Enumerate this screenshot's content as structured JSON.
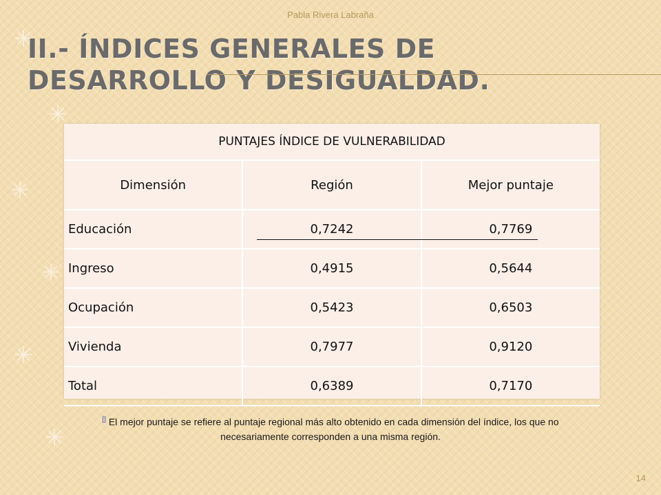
{
  "header": {
    "author": "Pabla Rivera Labraña"
  },
  "slide": {
    "title": "II.- ÍNDICES GENERALES DE DESARROLLO Y DESIGUALDAD.",
    "page_number": "14"
  },
  "table": {
    "title": "PUNTAJES ÍNDICE DE VULNERABILIDAD",
    "columns": [
      "Dimensión",
      "Región",
      "Mejor puntaje"
    ],
    "rows": [
      [
        "Educación",
        "0,7242",
        "0,7769"
      ],
      [
        "Ingreso",
        "0,4915",
        "0,5644"
      ],
      [
        "Ocupación",
        "0,5423",
        "0,6503"
      ],
      [
        "Vivienda",
        "0,7977",
        "0,9120"
      ],
      [
        "Total",
        "0,6389",
        "0,7170"
      ]
    ]
  },
  "footnote": {
    "marker": "[]",
    "line1": "El mejor puntaje se refiere al puntaje regional más alto obtenido en cada dimensión del índice, los que no",
    "line2": "necesariamente corresponden a una misma región."
  },
  "colors": {
    "background": "#f3ddb2",
    "title": "#6a6a6a",
    "table_bg": "#fbefe8",
    "accent": "#b59a5c"
  }
}
